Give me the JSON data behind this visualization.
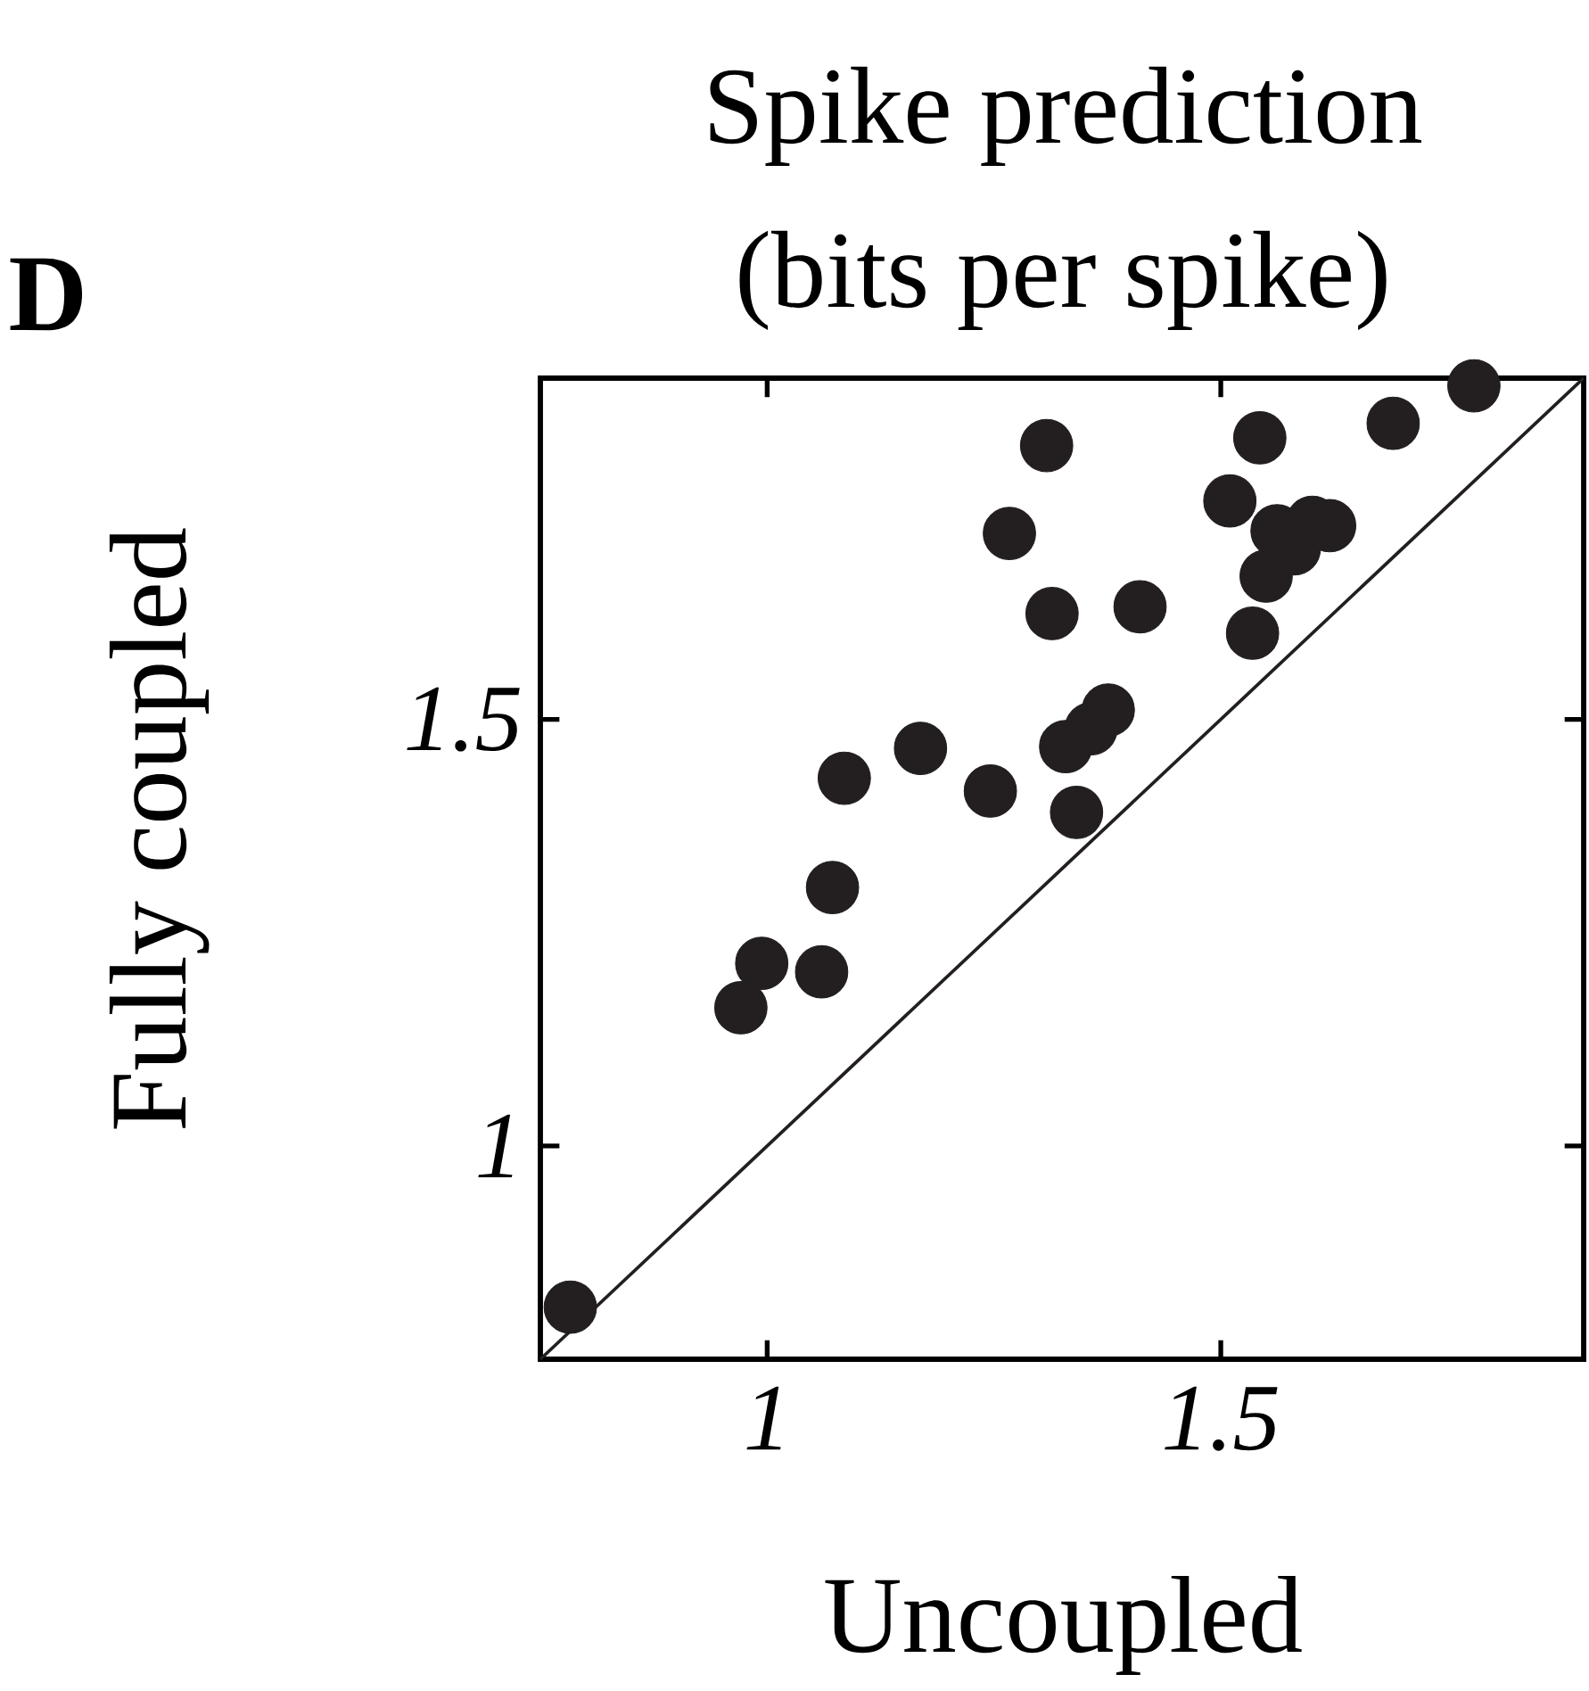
{
  "chart_data": {
    "type": "scatter",
    "title": "Spike prediction",
    "subtitle": "(bits per spike)",
    "xlabel": "Uncoupled",
    "ylabel": "Fully coupled",
    "annotations": [
      "D"
    ],
    "xlim": [
      0.75,
      1.9
    ],
    "ylim": [
      0.75,
      1.9
    ],
    "xticks": [
      1,
      1.5
    ],
    "yticks": [
      1,
      1.5
    ],
    "grid": false,
    "series": [
      {
        "color": "#231f20",
        "marker": "circle",
        "x": [
          0.783,
          0.971,
          0.994,
          1.06,
          1.072,
          1.085,
          1.169,
          1.246,
          1.267,
          1.308,
          1.314,
          1.329,
          1.341,
          1.357,
          1.376,
          1.411,
          1.51,
          1.535,
          1.543,
          1.55,
          1.562,
          1.581,
          1.601,
          1.62,
          1.69,
          1.779
        ],
        "values": [
          0.811,
          1.162,
          1.214,
          1.204,
          1.303,
          1.431,
          1.466,
          1.416,
          1.718,
          1.821,
          1.624,
          1.468,
          1.391,
          1.489,
          1.511,
          1.632,
          1.756,
          1.601,
          1.83,
          1.668,
          1.721,
          1.7,
          1.731,
          1.727,
          1.847,
          1.891
        ]
      },
      {
        "type": "line",
        "color": "#231f20",
        "line_style": "solid",
        "marker": "none",
        "x": [
          0.75,
          1.9
        ],
        "values": [
          0.75,
          1.9
        ]
      }
    ]
  }
}
